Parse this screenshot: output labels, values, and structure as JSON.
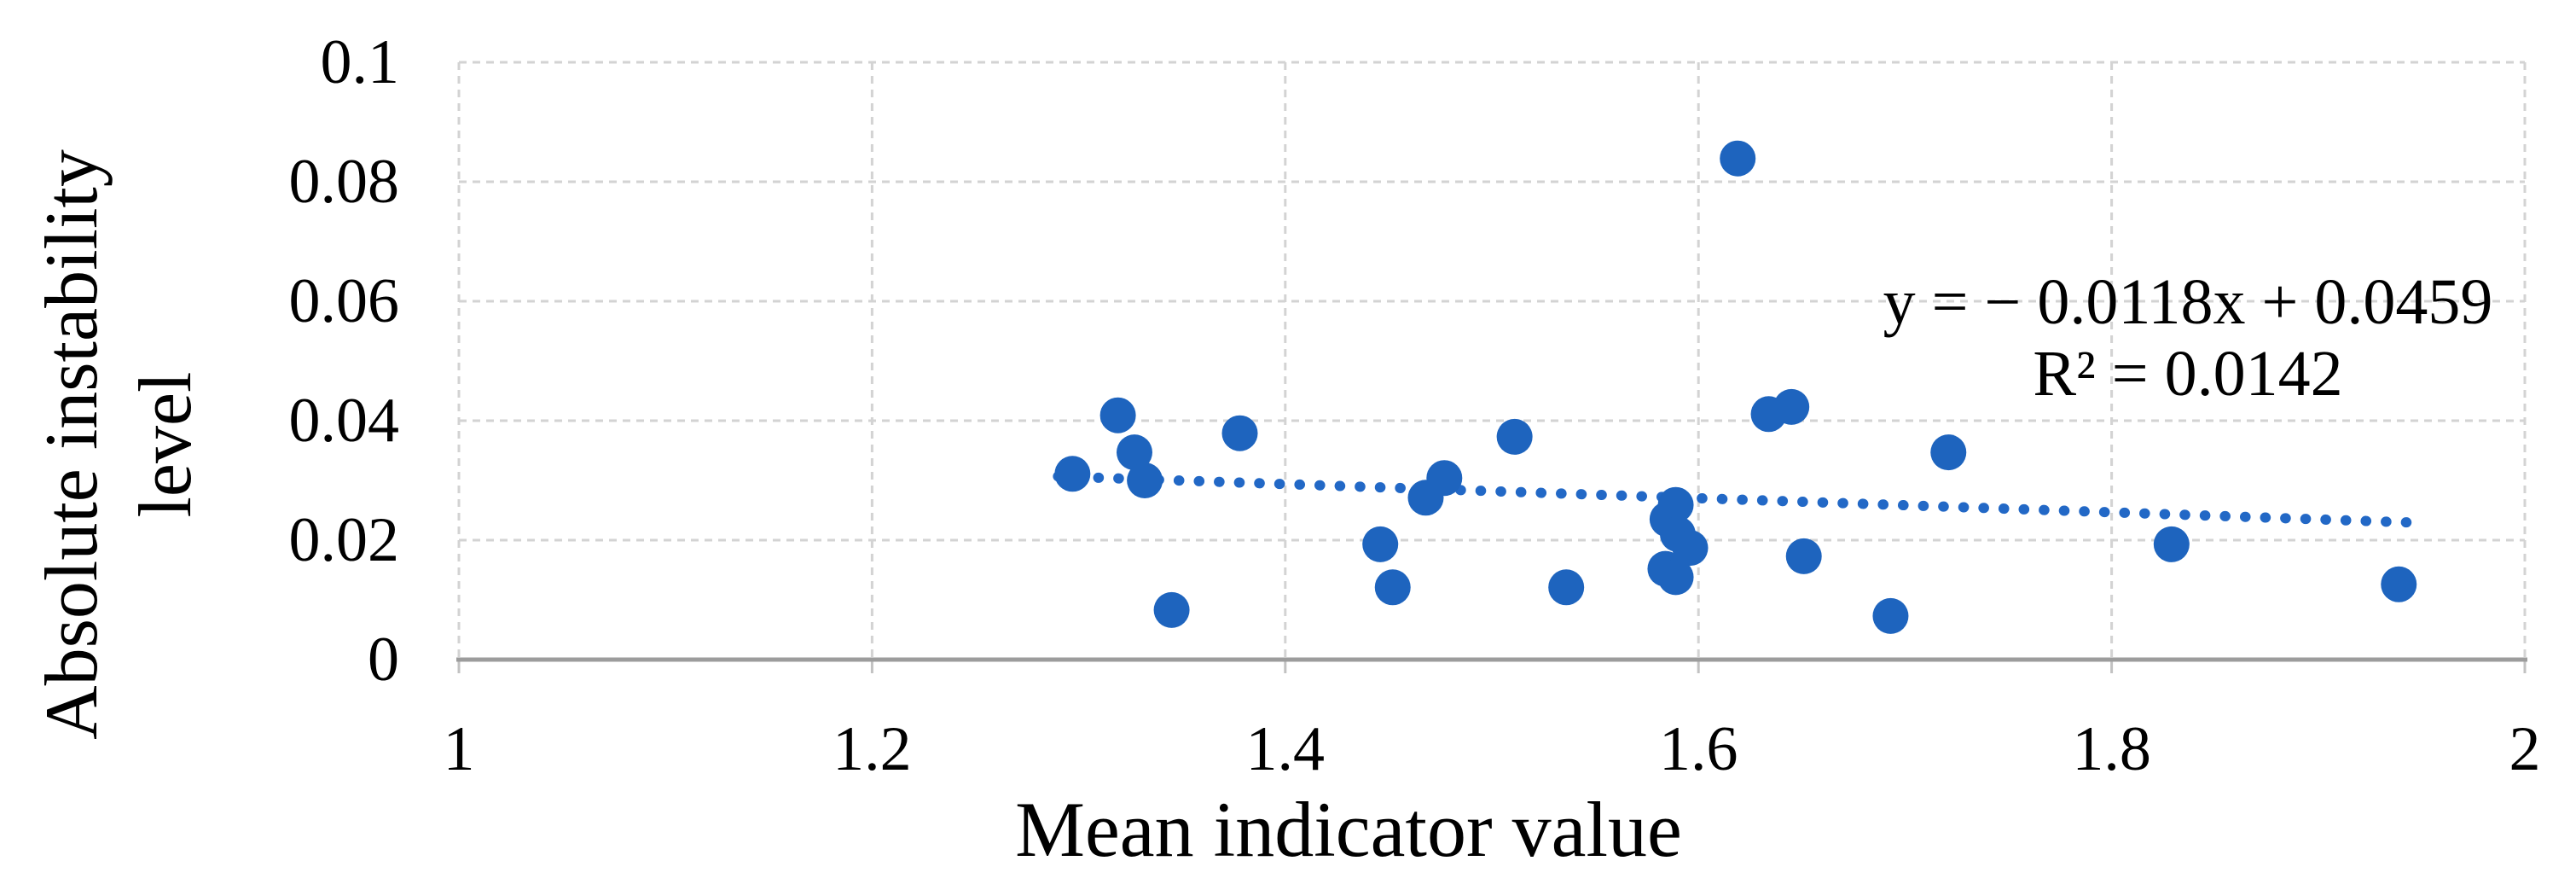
{
  "chart_data": {
    "type": "scatter",
    "title": "",
    "xlabel": "Mean indicator value",
    "ylabel_lines": [
      "Absolute instability",
      "level"
    ],
    "xlim": [
      1,
      2
    ],
    "ylim": [
      0,
      0.1
    ],
    "x_ticks": [
      "1",
      "1.2",
      "1.4",
      "1.6",
      "1.8",
      "2"
    ],
    "x_tick_values": [
      1,
      1.2,
      1.4,
      1.6,
      1.8,
      2
    ],
    "y_ticks": [
      "0",
      "0.02",
      "0.04",
      "0.06",
      "0.08",
      "0.1"
    ],
    "y_tick_values": [
      0,
      0.02,
      0.04,
      0.06,
      0.08,
      0.1
    ],
    "grid": true,
    "legend": "none",
    "points": [
      [
        1.297,
        0.0311
      ],
      [
        1.319,
        0.0409
      ],
      [
        1.327,
        0.0347
      ],
      [
        1.332,
        0.03
      ],
      [
        1.345,
        0.0083
      ],
      [
        1.378,
        0.0379
      ],
      [
        1.446,
        0.0193
      ],
      [
        1.452,
        0.0121
      ],
      [
        1.468,
        0.0271
      ],
      [
        1.477,
        0.0304
      ],
      [
        1.511,
        0.0373
      ],
      [
        1.536,
        0.0121
      ],
      [
        1.589,
        0.0259
      ],
      [
        1.585,
        0.0235
      ],
      [
        1.59,
        0.021
      ],
      [
        1.596,
        0.0187
      ],
      [
        1.584,
        0.0152
      ],
      [
        1.589,
        0.0138
      ],
      [
        1.619,
        0.0839
      ],
      [
        1.634,
        0.0411
      ],
      [
        1.645,
        0.0423
      ],
      [
        1.651,
        0.0173
      ],
      [
        1.693,
        0.0073
      ],
      [
        1.721,
        0.0347
      ],
      [
        1.829,
        0.0193
      ],
      [
        1.939,
        0.0126
      ]
    ],
    "trendline": {
      "slope": -0.0118,
      "intercept": 0.0459,
      "x_start": 1.29,
      "x_end": 1.944,
      "label_line1": "y = − 0.0118x + 0.0459",
      "label_line2": "R² = 0.0142"
    },
    "colors": {
      "marker": "#1e64be",
      "trendline": "#2268c6",
      "gridline": "#d3d3d3",
      "axis_line": "#9c9c9c",
      "text": "#000000"
    }
  }
}
